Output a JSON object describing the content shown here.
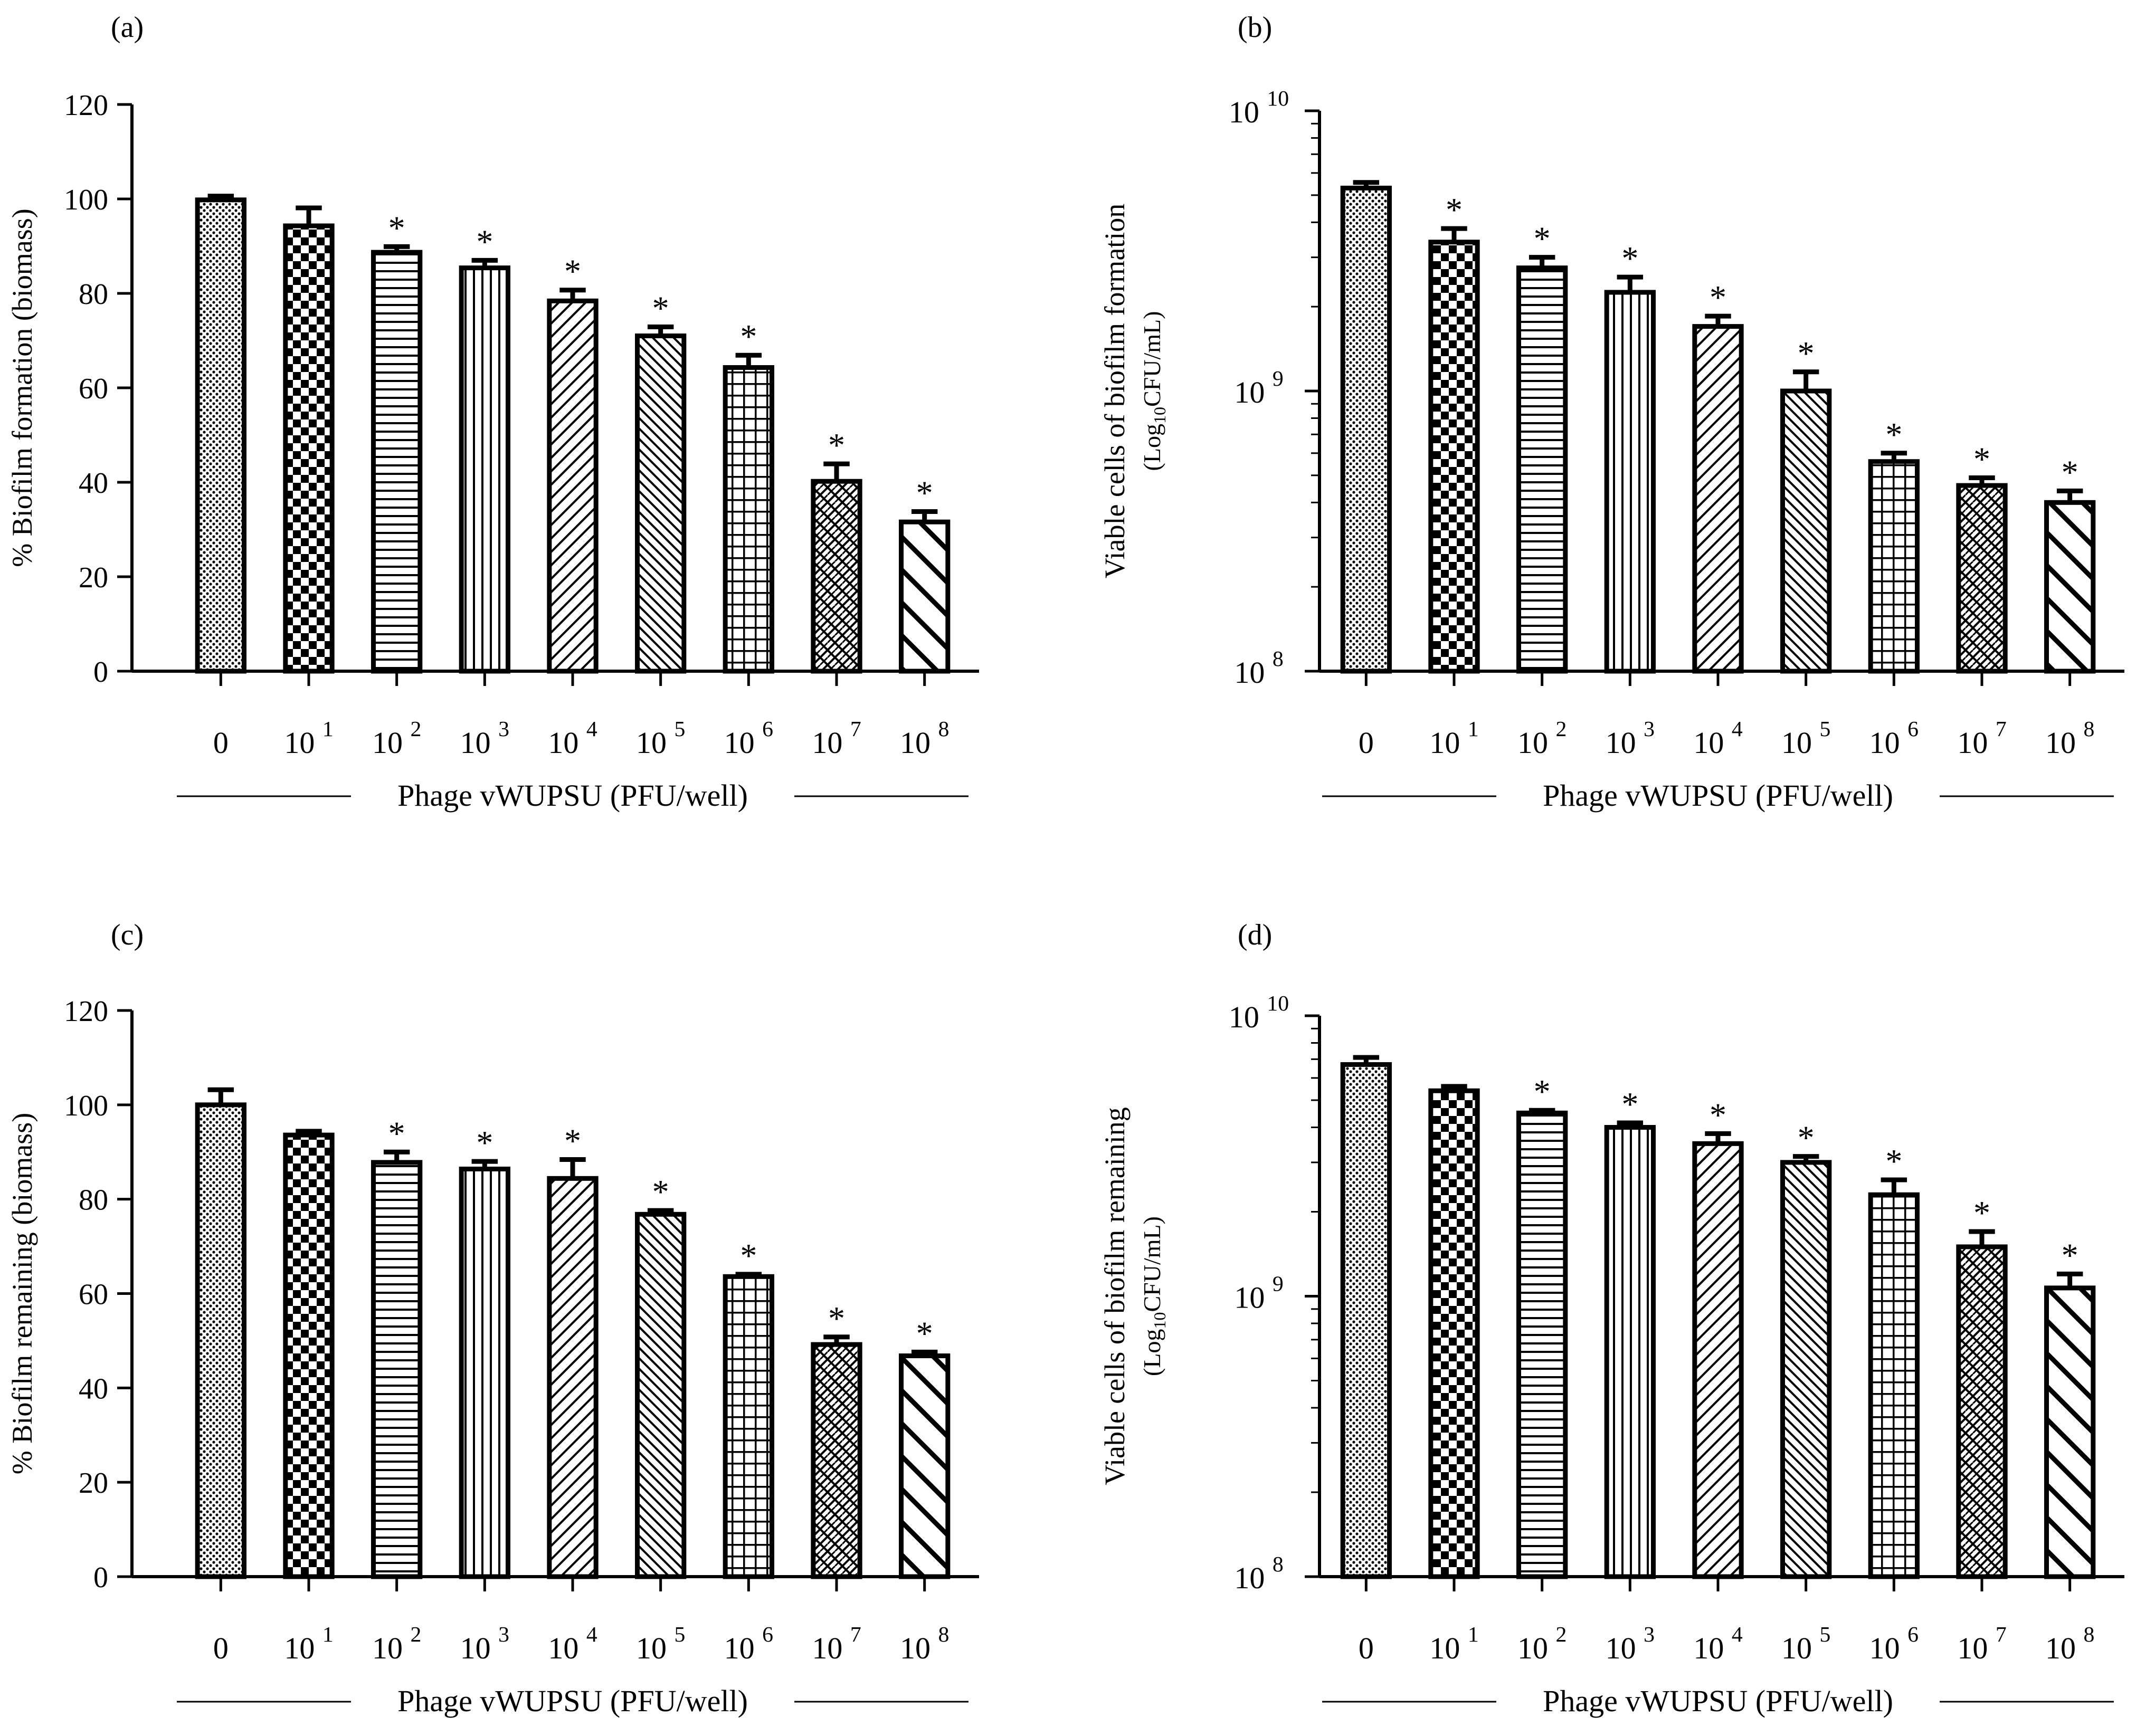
{
  "figure": {
    "x_axis_title": "Phage vWUPSU (PFU/well)",
    "x_ticks": [
      {
        "base": "0",
        "exp": ""
      },
      {
        "base": "10",
        "exp": "1"
      },
      {
        "base": "10",
        "exp": "2"
      },
      {
        "base": "10",
        "exp": "3"
      },
      {
        "base": "10",
        "exp": "4"
      },
      {
        "base": "10",
        "exp": "5"
      },
      {
        "base": "10",
        "exp": "6"
      },
      {
        "base": "10",
        "exp": "7"
      },
      {
        "base": "10",
        "exp": "8"
      }
    ],
    "colors": {
      "ink": "#000000",
      "fill": "#ffffff"
    },
    "bar_patterns": [
      "fine-dots",
      "checkerboard",
      "horizontal-lines",
      "vertical-lines",
      "diagonal-lines",
      "diagonal-lines-dense",
      "grid",
      "weave",
      "wide-diagonal"
    ],
    "significance_marker": "*"
  },
  "chart_data": [
    {
      "panel": "(a)",
      "type": "bar",
      "ylabel": "% Biofilm formation (biomass)",
      "ylabel_sub": "",
      "scale": "linear",
      "ylim": [
        0,
        120
      ],
      "yticks": [
        "0",
        "20",
        "40",
        "60",
        "80",
        "100",
        "120"
      ],
      "values": [
        99.8,
        94.3,
        88.7,
        85.4,
        78.4,
        71.0,
        64.3,
        40.2,
        31.6
      ],
      "errors": [
        0.8,
        3.8,
        1.2,
        1.6,
        2.3,
        1.9,
        2.6,
        3.7,
        2.2
      ],
      "significant": [
        false,
        false,
        true,
        true,
        true,
        true,
        true,
        true,
        true
      ]
    },
    {
      "panel": "(b)",
      "type": "bar",
      "ylabel": "Viable cells of biofilm formation",
      "ylabel_sub": "(Log10CFU/mL)",
      "scale": "log",
      "ylim": [
        100000000,
        10000000000
      ],
      "yticks": [
        {
          "base": "10",
          "exp": "8"
        },
        {
          "base": "10",
          "exp": "9"
        },
        {
          "base": "10",
          "exp": "10"
        }
      ],
      "values": [
        5300000000,
        3400000000,
        2750000000,
        2250000000,
        1700000000,
        1000000000,
        560000000,
        460000000,
        400000000
      ],
      "errors": [
        250000000,
        400000000,
        250000000,
        300000000,
        150000000,
        170000000,
        40000000,
        30000000,
        40000000
      ],
      "significant": [
        false,
        true,
        true,
        true,
        true,
        true,
        true,
        true,
        true
      ]
    },
    {
      "panel": "(c)",
      "type": "bar",
      "ylabel": "% Biofilm remaining (biomass)",
      "ylabel_sub": "",
      "scale": "linear",
      "ylim": [
        0,
        120
      ],
      "yticks": [
        "0",
        "20",
        "40",
        "60",
        "80",
        "100",
        "120"
      ],
      "values": [
        100.0,
        93.6,
        87.8,
        86.4,
        84.4,
        76.8,
        63.6,
        49.2,
        46.8
      ],
      "errors": [
        3.2,
        0.8,
        2.2,
        1.6,
        4.0,
        0.8,
        0.5,
        1.6,
        0.8
      ],
      "significant": [
        false,
        false,
        true,
        true,
        true,
        true,
        true,
        true,
        true
      ]
    },
    {
      "panel": "(d)",
      "type": "bar",
      "ylabel": "Viable cells of biofilm remaining",
      "ylabel_sub": "(Log10CFU/mL)",
      "scale": "log",
      "ylim": [
        100000000,
        10000000000
      ],
      "yticks": [
        {
          "base": "10",
          "exp": "8"
        },
        {
          "base": "10",
          "exp": "9"
        },
        {
          "base": "10",
          "exp": "10"
        }
      ],
      "values": [
        6700000000,
        5400000000,
        4500000000,
        4000000000,
        3500000000,
        3000000000,
        2300000000,
        1500000000,
        1070000000
      ],
      "errors": [
        400000000,
        200000000,
        100000000,
        150000000,
        300000000,
        150000000,
        300000000,
        200000000,
        130000000
      ],
      "significant": [
        false,
        false,
        true,
        true,
        true,
        true,
        true,
        true,
        true
      ]
    }
  ]
}
